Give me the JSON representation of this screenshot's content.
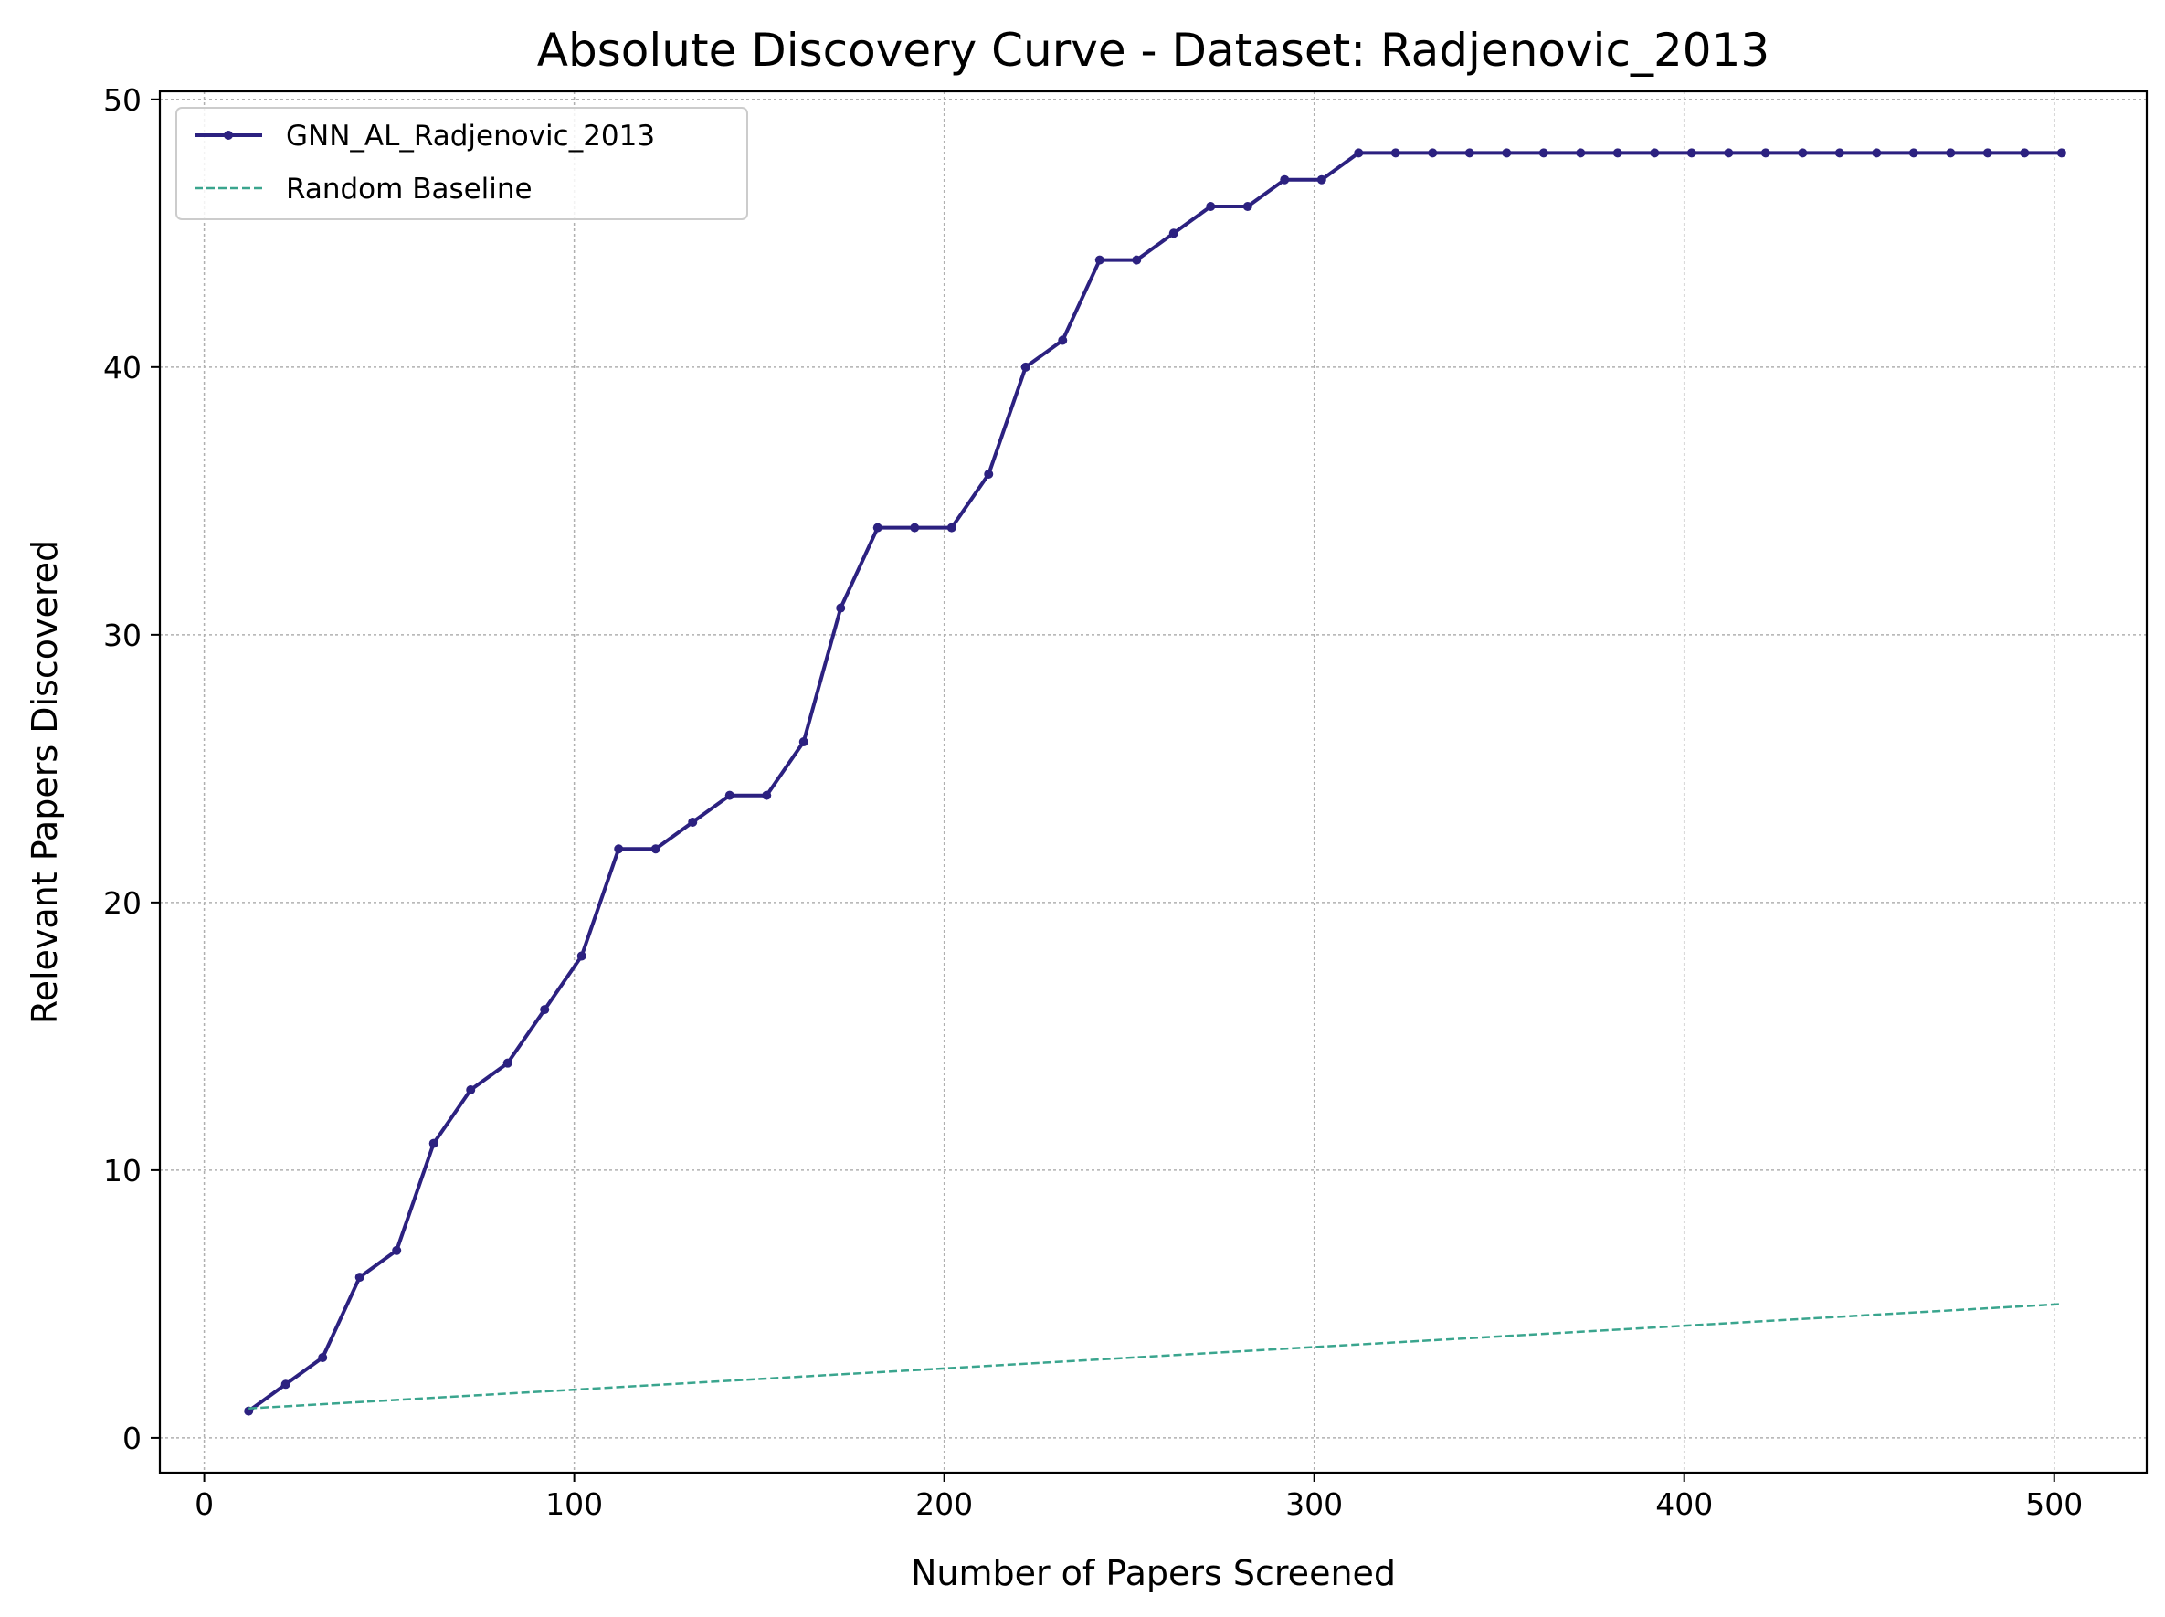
{
  "chart_data": {
    "type": "line",
    "title": "Absolute Discovery Curve - Dataset: Radjenovic_2013",
    "xlabel": "Number of Papers Screened",
    "ylabel": "Relevant Papers Discovered",
    "xlim": [
      -12,
      525
    ],
    "ylim": [
      -1.3,
      50.3
    ],
    "xticks": [
      0,
      100,
      200,
      300,
      400,
      500
    ],
    "yticks": [
      0,
      10,
      20,
      30,
      40,
      50
    ],
    "grid": true,
    "legend_position": "top-left",
    "series": [
      {
        "name": "GNN_AL_Radjenovic_2013",
        "color": "#2c2180",
        "style": "solid-markers",
        "x": [
          12,
          22,
          32,
          42,
          52,
          62,
          72,
          82,
          92,
          102,
          112,
          122,
          132,
          142,
          152,
          162,
          172,
          182,
          192,
          202,
          212,
          222,
          232,
          242,
          252,
          262,
          272,
          282,
          292,
          302,
          312,
          322,
          332,
          342,
          352,
          362,
          372,
          382,
          392,
          402,
          412,
          422,
          432,
          442,
          452,
          462,
          472,
          482,
          492,
          502
        ],
        "y": [
          1,
          2,
          3,
          6,
          7,
          11,
          13,
          14,
          16,
          18,
          22,
          22,
          23,
          24,
          24,
          26,
          31,
          34,
          34,
          34,
          36,
          40,
          41,
          44,
          44,
          45,
          46,
          46,
          47,
          47,
          48,
          48,
          48,
          48,
          48,
          48,
          48,
          48,
          48,
          48,
          48,
          48,
          48,
          48,
          48,
          48,
          48,
          48,
          48,
          48
        ]
      },
      {
        "name": "Random Baseline",
        "color": "#3aa58e",
        "style": "dashed",
        "x": [
          12,
          502
        ],
        "y": [
          1.1,
          5.0
        ]
      }
    ]
  }
}
